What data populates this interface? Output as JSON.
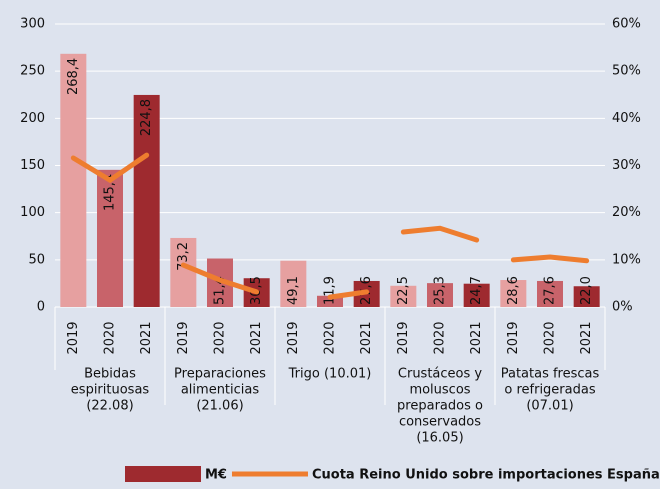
{
  "chart_data": {
    "type": "bar",
    "categories": [
      "2019",
      "2020",
      "2021",
      "2019",
      "2020",
      "2021",
      "2019",
      "2020",
      "2021",
      "2019",
      "2020",
      "2021",
      "2019",
      "2020",
      "2021"
    ],
    "groups": [
      [
        "Bebidas",
        "espirituosas",
        "(22.08)"
      ],
      [
        "Preparaciones",
        "alimenticias",
        "(21.06)"
      ],
      [
        "Trigo (10.01)"
      ],
      [
        "Crustáceos y",
        "moluscos",
        "preparados o",
        "conservados",
        "(16.05)"
      ],
      [
        "Patatas frescas",
        "o refrigeradas",
        "(07.01)"
      ]
    ],
    "series": [
      {
        "name": "M€",
        "type": "bar",
        "color": "#9e2a2f",
        "colors": [
          "#e6a0a0",
          "#c8636a",
          "#9e2a2f"
        ],
        "values": [
          268.4,
          145.4,
          224.8,
          73.2,
          51.4,
          30.5,
          49.1,
          11.9,
          27.6,
          22.5,
          25.3,
          24.7,
          28.6,
          27.6,
          22.0
        ],
        "value_labels": [
          "268,4",
          "145,4",
          "224,8",
          "73,2",
          "51,4",
          "30,5",
          "49,1",
          "11,9",
          "27,6",
          "22,5",
          "25,3",
          "24,7",
          "28,6",
          "27,6",
          "22,0"
        ]
      },
      {
        "name": "Cuota Reino Unido sobre importaciones España",
        "type": "line",
        "axis": "y2",
        "color": "#ee7d2f",
        "values": [
          31.6,
          26.9,
          32.2,
          8.9,
          5.7,
          3.2,
          null,
          2.1,
          3.2,
          15.9,
          16.7,
          14.2,
          10.0,
          10.6,
          9.8
        ]
      }
    ],
    "ylim": [
      0,
      300
    ],
    "yticks": [
      0,
      50,
      100,
      150,
      200,
      250,
      300
    ],
    "y2lim": [
      0,
      60
    ],
    "y2ticks": [
      {
        "value": 0,
        "label": "0%"
      },
      {
        "value": 10,
        "label": "10%"
      },
      {
        "value": 20,
        "label": "20%"
      },
      {
        "value": 30,
        "label": "30%"
      },
      {
        "value": 40,
        "label": "40%"
      },
      {
        "value": 50,
        "label": "50%"
      },
      {
        "value": 60,
        "label": "60%"
      }
    ],
    "grid": true
  }
}
